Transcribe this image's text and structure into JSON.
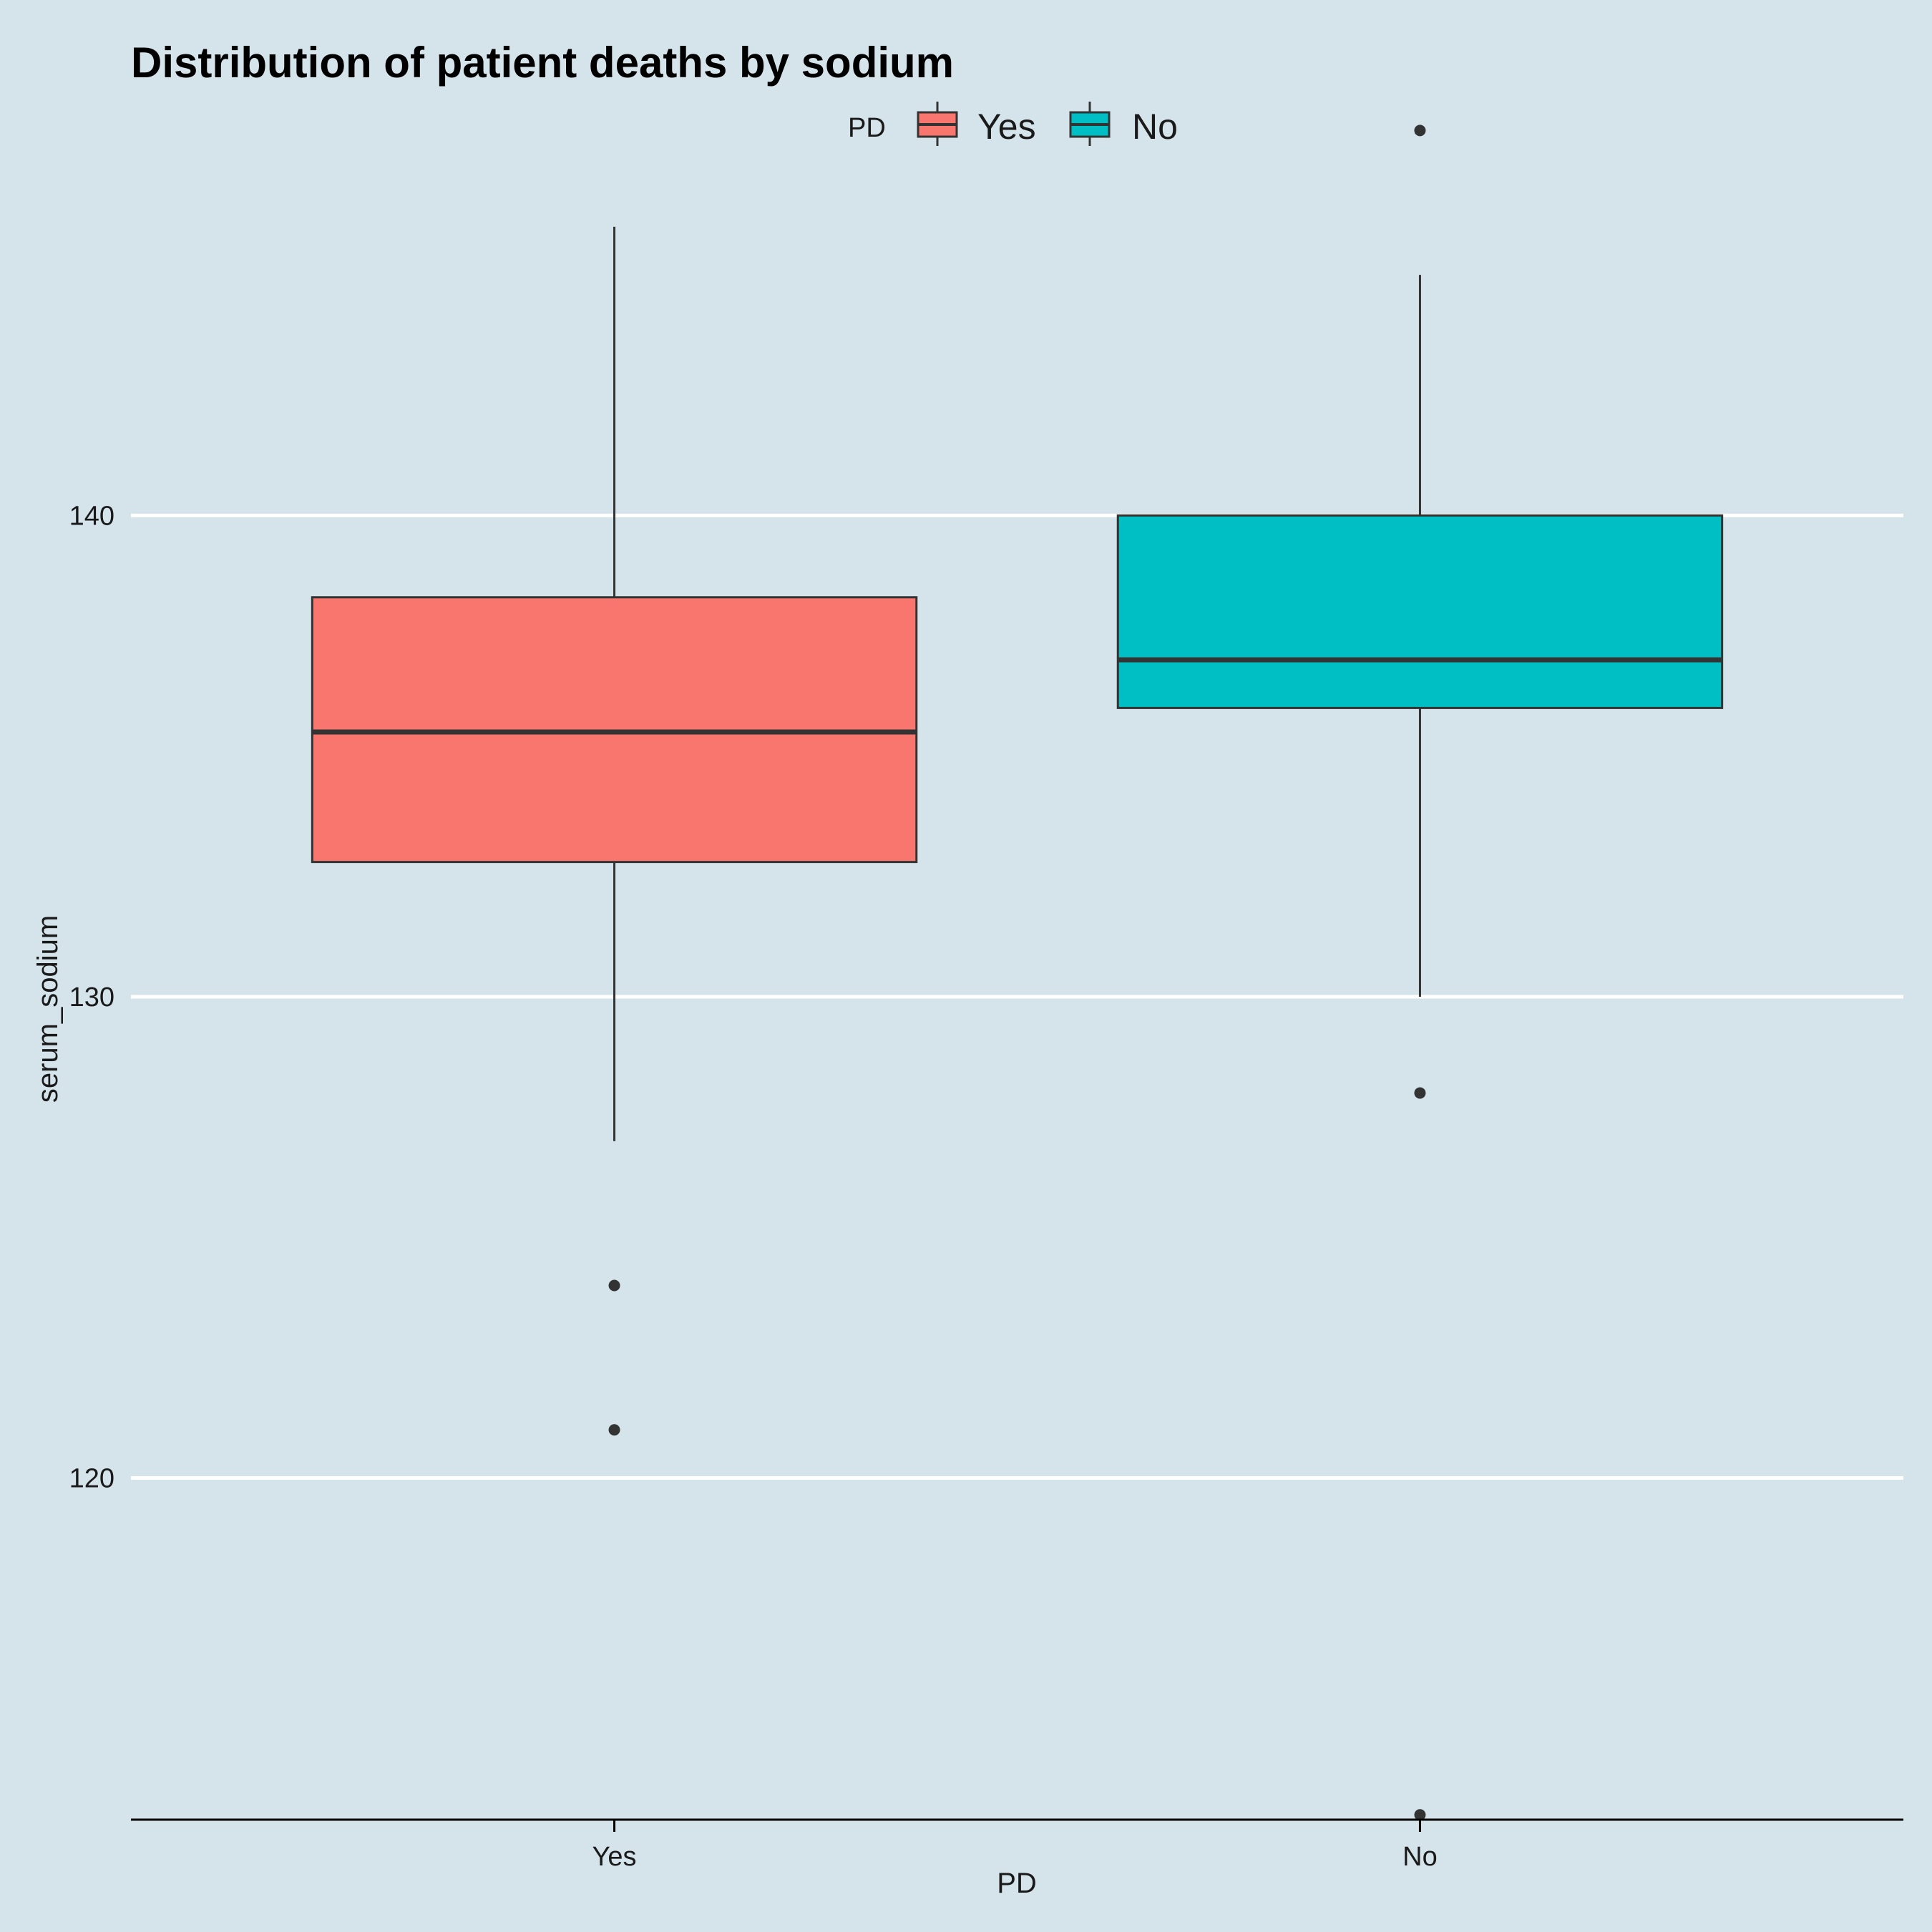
{
  "chart_data": {
    "type": "boxplot",
    "title": "Distribution of patient deaths by sodium",
    "xlabel": "PD",
    "ylabel": "serum_sodium",
    "categories": [
      "Yes",
      "No"
    ],
    "ylim": [
      112.9,
      148.6
    ],
    "yticks": [
      120,
      130,
      140
    ],
    "grid": "horizontal major only",
    "legend": {
      "title": "PD",
      "position": "top",
      "entries": [
        {
          "label": "Yes",
          "color": "#f8766d"
        },
        {
          "label": "No",
          "color": "#00bfc4"
        }
      ]
    },
    "series": [
      {
        "category": "Yes",
        "color": "#f8766d",
        "min": 127,
        "q1": 132.8,
        "median": 135.5,
        "q3": 138.3,
        "max": 146,
        "outliers": [
          124,
          121
        ]
      },
      {
        "category": "No",
        "color": "#00bfc4",
        "min": 130,
        "q1": 136,
        "median": 137,
        "q3": 140,
        "max": 145,
        "outliers": [
          148,
          128,
          113
        ]
      }
    ]
  },
  "colors": {
    "background": "#d5e4eb",
    "grid": "#ffffff",
    "box_outline": "#333333"
  }
}
